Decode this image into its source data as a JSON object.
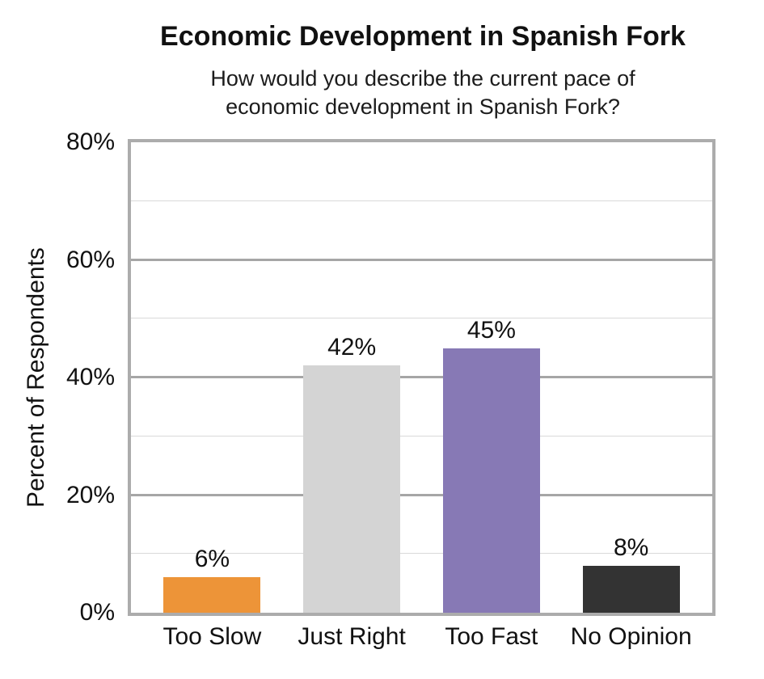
{
  "chart_data": {
    "type": "bar",
    "title": "Economic Development in Spanish Fork",
    "subtitle": "How would you describe the current pace of economic development in Spanish Fork?",
    "categories": [
      "Too Slow",
      "Just Right",
      "Too Fast",
      "No Opinion"
    ],
    "values": [
      6,
      42,
      45,
      8
    ],
    "data_labels": [
      "6%",
      "42%",
      "45%",
      "8%"
    ],
    "bar_colors": [
      "#ED9438",
      "#D4D4D4",
      "#8779B5",
      "#333333"
    ],
    "xlabel": "",
    "ylabel": "Percent of Respondents",
    "ylim": [
      0,
      80
    ],
    "yticks": [
      0,
      20,
      40,
      60,
      80
    ],
    "ytick_labels": [
      "0%",
      "20%",
      "40%",
      "60%",
      "80%"
    ],
    "minor_grid_step": 10,
    "major_grid_step": 20,
    "grid": "horizontal",
    "legend": "none",
    "colors": {
      "major_gridline": "#A6A6A6",
      "minor_gridline": "#D9D9D9",
      "plot_border": "#ACACAC",
      "text": "#111111",
      "background": "#FFFFFF"
    }
  }
}
